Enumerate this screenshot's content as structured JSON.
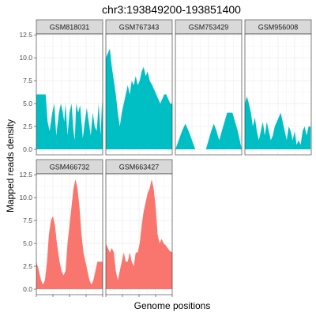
{
  "chart_data": {
    "type": "area",
    "title": "chr3:193849200-193851400",
    "xlabel": "Genome positions",
    "ylabel": "Mapped reads density",
    "ylim": [
      -0.6,
      12.6
    ],
    "y_ticks": [
      "0.0",
      "2.5",
      "5.0",
      "7.5",
      "10.0",
      "12.5"
    ],
    "y_tick_values": [
      0,
      2.5,
      5,
      7.5,
      10,
      12.5
    ],
    "x_range": [
      0,
      1
    ],
    "grid": true,
    "legend": "none",
    "colors": {
      "teal": "#00BFC4",
      "salmon": "#F8766D"
    },
    "panels": [
      {
        "name": "GSM818031",
        "color": "teal",
        "x": [
          0,
          0.05,
          0.1,
          0.14,
          0.17,
          0.2,
          0.24,
          0.27,
          0.3,
          0.34,
          0.37,
          0.4,
          0.42,
          0.44,
          0.47,
          0.5,
          0.53,
          0.56,
          0.58,
          0.6,
          0.63,
          0.66,
          0.7,
          0.73,
          0.76,
          0.79,
          0.82,
          0.85,
          0.88,
          0.91,
          0.94,
          0.97,
          0.99,
          1
        ],
        "values": [
          6,
          6,
          6,
          6,
          3,
          2,
          4,
          5,
          1.5,
          4,
          5,
          4,
          3,
          5,
          1.5,
          4,
          5,
          2,
          1,
          5,
          4,
          4.8,
          1.2,
          3,
          4.5,
          3,
          1.5,
          4,
          2.5,
          2,
          5,
          1.5,
          5.3,
          3
        ]
      },
      {
        "name": "GSM767343",
        "color": "teal",
        "x": [
          0,
          0.03,
          0.06,
          0.09,
          0.12,
          0.15,
          0.18,
          0.21,
          0.24,
          0.27,
          0.3,
          0.33,
          0.36,
          0.39,
          0.42,
          0.45,
          0.48,
          0.51,
          0.54,
          0.57,
          0.6,
          0.63,
          0.66,
          0.7,
          0.73,
          0.76,
          0.79,
          0.82,
          0.85,
          0.88,
          0.91,
          0.94,
          0.97,
          1
        ],
        "values": [
          10,
          10.5,
          11,
          9,
          7.5,
          6,
          4,
          2.5,
          4,
          5,
          6,
          7,
          6,
          7.5,
          7,
          8,
          7,
          7.5,
          8.5,
          9,
          8,
          8.5,
          7.5,
          7,
          6.5,
          6,
          5.5,
          5,
          5.5,
          6,
          6,
          5.5,
          5,
          5
        ]
      },
      {
        "name": "GSM753429",
        "color": "teal",
        "x": [
          0,
          0.05,
          0.1,
          0.15,
          0.2,
          0.25,
          0.3,
          0.34,
          0.38,
          0.42,
          0.46,
          0.5,
          0.54,
          0.58,
          0.62,
          0.66,
          0.7,
          0.74,
          0.78,
          0.82,
          0.86,
          0.9,
          0.94,
          0.97,
          1
        ],
        "values": [
          0,
          1,
          2,
          2.8,
          2,
          1,
          0,
          0,
          0,
          0,
          0,
          1,
          2,
          2.8,
          2,
          1,
          2,
          3,
          4,
          4,
          4,
          3,
          2,
          1,
          0
        ]
      },
      {
        "name": "GSM956008",
        "color": "teal",
        "x": [
          0,
          0.03,
          0.06,
          0.09,
          0.12,
          0.15,
          0.18,
          0.21,
          0.24,
          0.27,
          0.3,
          0.33,
          0.36,
          0.39,
          0.42,
          0.45,
          0.48,
          0.51,
          0.54,
          0.57,
          0.6,
          0.63,
          0.66,
          0.69,
          0.72,
          0.75,
          0.78,
          0.81,
          0.84,
          0.87,
          0.9,
          0.93,
          0.96,
          0.99
        ],
        "values": [
          5,
          5.8,
          5,
          4,
          2.5,
          3.5,
          2,
          1,
          2,
          3,
          1.5,
          3,
          2,
          1,
          1.5,
          2.5,
          3,
          3.5,
          4,
          3,
          2,
          1,
          2.5,
          2,
          1,
          2,
          0.5,
          1,
          0.5,
          2,
          2.5,
          1.5,
          2.5,
          2.5
        ]
      },
      {
        "name": "GSM466732",
        "color": "salmon",
        "x": [
          0,
          0.04,
          0.07,
          0.1,
          0.13,
          0.16,
          0.19,
          0.22,
          0.25,
          0.28,
          0.31,
          0.35,
          0.38,
          0.41,
          0.44,
          0.47,
          0.5,
          0.53,
          0.56,
          0.59,
          0.62,
          0.65,
          0.68,
          0.71,
          0.74,
          0.77,
          0.8,
          0.83,
          0.86,
          0.89,
          0.92,
          0.95,
          0.98,
          1
        ],
        "values": [
          3,
          2,
          1,
          0.5,
          1,
          3,
          6,
          7.5,
          8,
          7,
          5,
          3,
          2,
          1.5,
          2,
          5,
          7,
          9,
          11,
          12,
          11,
          9,
          6,
          4,
          3,
          2,
          1,
          0.5,
          1,
          2,
          3,
          3,
          3,
          3
        ]
      },
      {
        "name": "GSM663427",
        "color": "salmon",
        "x": [
          0,
          0.03,
          0.06,
          0.09,
          0.12,
          0.15,
          0.18,
          0.21,
          0.24,
          0.27,
          0.3,
          0.33,
          0.36,
          0.39,
          0.42,
          0.45,
          0.48,
          0.51,
          0.54,
          0.57,
          0.6,
          0.63,
          0.66,
          0.69,
          0.72,
          0.75,
          0.78,
          0.81,
          0.84,
          0.87,
          0.9,
          0.93,
          0.96,
          1
        ],
        "values": [
          5,
          4.5,
          4,
          4.5,
          4,
          2,
          1,
          2,
          3,
          4,
          3,
          3,
          4,
          3,
          2.5,
          4,
          4,
          5,
          7,
          8.5,
          9.5,
          10.5,
          11,
          12,
          11,
          9,
          6,
          5,
          5.5,
          5,
          4.8,
          4.5,
          4.2,
          4
        ]
      }
    ]
  }
}
